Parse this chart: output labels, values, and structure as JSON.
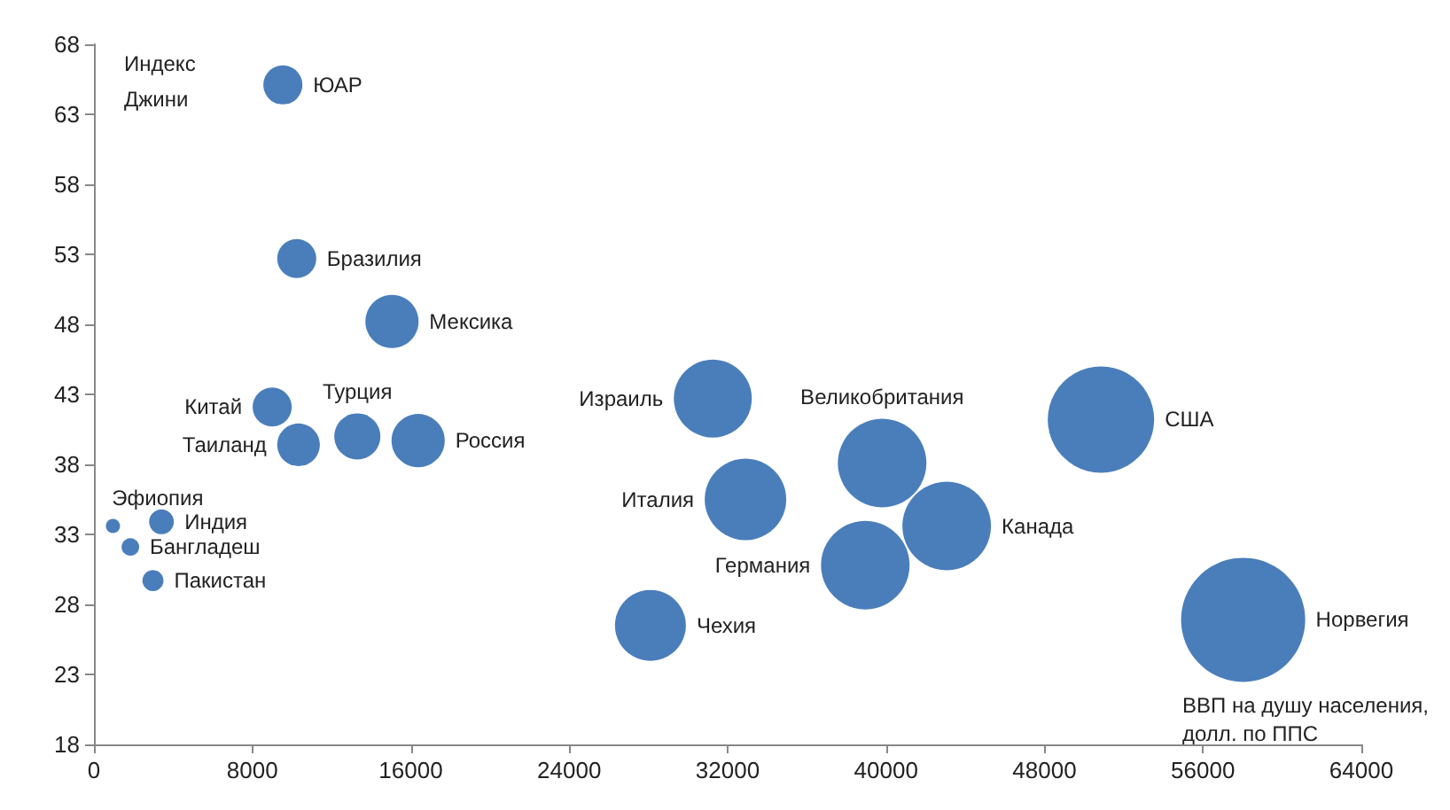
{
  "chart_data": {
    "type": "bubble",
    "xlabel": "ВВП на душу населения, долл. по ППС",
    "ylabel": "Индекс Джини",
    "xlim": [
      0,
      64000
    ],
    "xticks": [
      0,
      8000,
      16000,
      24000,
      32000,
      40000,
      48000,
      56000,
      64000
    ],
    "ylim": [
      18,
      68
    ],
    "yticks": [
      18,
      23,
      28,
      33,
      38,
      43,
      48,
      53,
      58,
      63,
      68
    ],
    "grid": false,
    "legend": false,
    "marker": "circle",
    "series": [
      {
        "name": "ЮАР",
        "color": "#4a7ebb",
        "x": [
          9540
        ],
        "values": [
          65.1
        ],
        "sizes": [
          0.099
        ]
      },
      {
        "name": "Бразилия",
        "color": "#4a7ebb",
        "x": [
          10240
        ],
        "values": [
          52.7
        ],
        "sizes": [
          0.099
        ]
      },
      {
        "name": "Мексика",
        "color": "#4a7ebb",
        "x": [
          15050
        ],
        "values": [
          48.2
        ],
        "sizes": [
          0.184
        ]
      },
      {
        "name": "Китай",
        "color": "#4a7ebb",
        "x": [
          9000
        ],
        "values": [
          42.1
        ],
        "sizes": [
          0.099
        ]
      },
      {
        "name": "Таиланд",
        "color": "#4a7ebb",
        "x": [
          10330
        ],
        "values": [
          39.4
        ],
        "sizes": [
          0.118
        ]
      },
      {
        "name": "Турция",
        "color": "#4a7ebb",
        "x": [
          13300
        ],
        "values": [
          40.0
        ],
        "sizes": [
          0.138
        ]
      },
      {
        "name": "Россия",
        "color": "#4a7ebb",
        "x": [
          16370
        ],
        "values": [
          39.7
        ],
        "sizes": [
          0.184
        ]
      },
      {
        "name": "Израиль",
        "color": "#4a7ebb",
        "x": [
          31250
        ],
        "values": [
          42.7
        ],
        "sizes": [
          0.395
        ]
      },
      {
        "name": "Италия",
        "color": "#4a7ebb",
        "x": [
          32900
        ],
        "values": [
          35.5
        ],
        "sizes": [
          0.432
        ]
      },
      {
        "name": "Чехия",
        "color": "#4a7ebb",
        "x": [
          28100
        ],
        "values": [
          26.5
        ],
        "sizes": [
          0.327
        ]
      },
      {
        "name": "Великобритания",
        "color": "#4a7ebb",
        "x": [
          39800
        ],
        "values": [
          38.1
        ],
        "sizes": [
          0.51
        ]
      },
      {
        "name": "Германия",
        "color": "#4a7ebb",
        "x": [
          38950
        ],
        "values": [
          30.8
        ],
        "sizes": [
          0.51
        ]
      },
      {
        "name": "Канада",
        "color": "#4a7ebb",
        "x": [
          43060
        ],
        "values": [
          33.6
        ],
        "sizes": [
          0.51
        ]
      },
      {
        "name": "США",
        "color": "#4a7ebb",
        "x": [
          50850
        ],
        "values": [
          41.2
        ],
        "sizes": [
          0.735
        ]
      },
      {
        "name": "Норвегия",
        "color": "#4a7ebb",
        "x": [
          58030
        ],
        "values": [
          26.9
        ],
        "sizes": [
          1
        ]
      },
      {
        "name": "Эфиопия",
        "color": "#4a7ebb",
        "x": [
          960
        ],
        "values": [
          33.6
        ],
        "sizes": [
          0.013
        ]
      },
      {
        "name": "Индия",
        "color": "#4a7ebb",
        "x": [
          3410
        ],
        "values": [
          33.9
        ],
        "sizes": [
          0.04
        ]
      },
      {
        "name": "Бангладеш",
        "color": "#4a7ebb",
        "x": [
          1840
        ],
        "values": [
          32.1
        ],
        "sizes": [
          0.02
        ]
      },
      {
        "name": "Пакистан",
        "color": "#4a7ebb",
        "x": [
          2980
        ],
        "values": [
          29.7
        ],
        "sizes": [
          0.029
        ]
      }
    ]
  }
}
